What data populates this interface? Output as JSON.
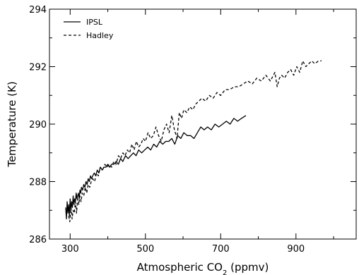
{
  "chart_data": {
    "type": "line",
    "xlabel": "Atmospheric CO₂ (ppmv)",
    "xlabel_parts": [
      "Atmospheric CO",
      "2",
      " (ppmv)"
    ],
    "ylabel": "Temperature (K)",
    "xlim": [
      245,
      1060
    ],
    "ylim": [
      286,
      294
    ],
    "xticks": [
      300,
      500,
      700,
      900
    ],
    "xticks_minor": [
      400,
      600,
      800,
      1000
    ],
    "yticks": [
      286,
      288,
      290,
      292,
      294
    ],
    "yticks_minor": [
      287,
      289,
      291,
      293
    ],
    "grid": false,
    "legend_position": "top-left",
    "series": [
      {
        "name": "IPSL",
        "style": "solid",
        "x": [
          288,
          290,
          292,
          294,
          296,
          298,
          300,
          302,
          304,
          306,
          308,
          310,
          312,
          314,
          316,
          318,
          320,
          322,
          324,
          326,
          328,
          330,
          333,
          336,
          339,
          342,
          345,
          348,
          351,
          354,
          357,
          360,
          364,
          368,
          372,
          376,
          380,
          385,
          390,
          395,
          400,
          405,
          410,
          416,
          422,
          428,
          434,
          440,
          447,
          454,
          461,
          468,
          475,
          482,
          490,
          498,
          506,
          514,
          522,
          530,
          538,
          546,
          554,
          562,
          570,
          578,
          586,
          594,
          602,
          611,
          620,
          629,
          638,
          647,
          656,
          665,
          675,
          685,
          695,
          705,
          715,
          725,
          735,
          745,
          755,
          767
        ],
        "y": [
          287.1,
          286.7,
          287.3,
          286.9,
          287.2,
          286.8,
          287.4,
          287.0,
          287.3,
          287.1,
          287.5,
          287.2,
          287.4,
          287.3,
          287.6,
          287.4,
          287.5,
          287.6,
          287.4,
          287.7,
          287.6,
          287.8,
          287.7,
          287.9,
          287.8,
          288.0,
          287.9,
          288.1,
          288.0,
          288.2,
          288.1,
          288.2,
          288.3,
          288.2,
          288.4,
          288.3,
          288.5,
          288.4,
          288.5,
          288.5,
          288.6,
          288.5,
          288.6,
          288.6,
          288.7,
          288.6,
          288.8,
          288.7,
          288.9,
          288.8,
          288.9,
          289.0,
          288.9,
          289.1,
          289.0,
          289.1,
          289.2,
          289.1,
          289.3,
          289.2,
          289.4,
          289.3,
          289.4,
          289.4,
          289.5,
          289.3,
          289.6,
          289.5,
          289.7,
          289.6,
          289.6,
          289.5,
          289.7,
          289.9,
          289.8,
          289.9,
          289.8,
          290.0,
          289.9,
          290.0,
          290.1,
          290.0,
          290.2,
          290.1,
          290.2,
          290.3
        ]
      },
      {
        "name": "Hadley",
        "style": "dashed",
        "x": [
          296,
          299,
          302,
          305,
          308,
          311,
          314,
          317,
          320,
          323,
          326,
          329,
          332,
          336,
          340,
          344,
          348,
          352,
          356,
          360,
          365,
          370,
          375,
          380,
          386,
          392,
          398,
          404,
          410,
          416,
          422,
          428,
          434,
          440,
          446,
          452,
          458,
          464,
          470,
          476,
          482,
          488,
          494,
          500,
          507,
          514,
          521,
          528,
          535,
          542,
          549,
          556,
          563,
          570,
          577,
          584,
          590,
          596,
          602,
          610,
          618,
          626,
          634,
          642,
          650,
          660,
          670,
          680,
          690,
          700,
          712,
          724,
          736,
          748,
          760,
          772,
          784,
          796,
          808,
          820,
          832,
          844,
          850,
          856,
          862,
          870,
          878,
          886,
          894,
          902,
          910,
          918,
          926,
          934,
          942,
          950,
          960,
          968
        ],
        "y": [
          286.8,
          286.6,
          287.1,
          286.7,
          287.0,
          286.9,
          287.3,
          286.9,
          287.4,
          287.2,
          287.5,
          287.3,
          287.6,
          287.5,
          287.8,
          287.6,
          287.9,
          287.8,
          288.0,
          288.1,
          288.0,
          288.3,
          288.2,
          288.5,
          288.4,
          288.6,
          288.5,
          288.6,
          288.5,
          288.7,
          288.6,
          288.9,
          288.8,
          289.0,
          288.9,
          289.1,
          289.0,
          289.3,
          289.1,
          289.4,
          289.2,
          289.3,
          289.5,
          289.4,
          289.7,
          289.5,
          289.6,
          289.9,
          289.6,
          289.4,
          289.8,
          290.0,
          289.7,
          290.3,
          289.8,
          289.5,
          290.4,
          290.2,
          290.5,
          290.4,
          290.6,
          290.5,
          290.7,
          290.8,
          290.9,
          290.8,
          291.0,
          290.9,
          291.1,
          291.0,
          291.2,
          291.2,
          291.3,
          291.3,
          291.4,
          291.5,
          291.4,
          291.6,
          291.5,
          291.7,
          291.5,
          291.8,
          291.3,
          291.6,
          291.7,
          291.6,
          291.8,
          291.9,
          291.7,
          292.0,
          291.8,
          292.2,
          292.0,
          292.1,
          292.2,
          292.1,
          292.2,
          292.2
        ]
      }
    ]
  }
}
